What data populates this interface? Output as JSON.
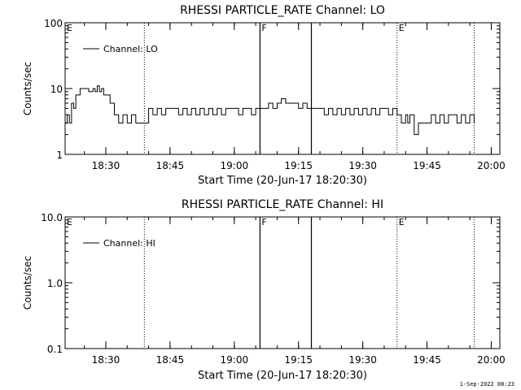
{
  "timestamp": "1-Sep-2022 08:23",
  "x_ticks": [
    "18:30",
    "18:45",
    "19:00",
    "19:15",
    "19:30",
    "19:45",
    "20:00"
  ],
  "markers": {
    "dotted": [
      "18:39",
      "19:38",
      "19:56"
    ],
    "solid": [
      "19:06",
      "19:18"
    ],
    "letters": [
      {
        "text": "E",
        "time": "18:20:30"
      },
      {
        "text": "F",
        "time": "19:06"
      },
      {
        "text": "E",
        "time": "19:38"
      }
    ]
  },
  "chart_data": [
    {
      "type": "line",
      "title": "RHESSI PARTICLE_RATE Channel: LO",
      "xlabel": "Start Time (20-Jun-17 18:20:30)",
      "ylabel": "Counts/sec",
      "yscale": "log",
      "ylim": [
        1,
        100
      ],
      "y_ticks": [
        "1",
        "10",
        "100"
      ],
      "xlim": [
        "18:20:30",
        "20:02"
      ],
      "legend": {
        "position": "top-left",
        "entries": [
          "Channel: LO"
        ]
      },
      "series": [
        {
          "name": "Channel: LO",
          "x": [
            "18:20:30",
            "18:21",
            "18:21:30",
            "18:22",
            "18:22:30",
            "18:23",
            "18:24",
            "18:25",
            "18:26",
            "18:27",
            "18:27:30",
            "18:28",
            "18:28:30",
            "18:29",
            "18:29:30",
            "18:30",
            "18:31",
            "18:32",
            "18:33",
            "18:34",
            "18:35",
            "18:36",
            "18:37",
            "18:38",
            "18:39",
            "18:40",
            "18:41",
            "18:42",
            "18:43",
            "18:44",
            "18:45",
            "18:46",
            "18:47",
            "18:48",
            "18:49",
            "18:50",
            "18:51",
            "18:52",
            "18:53",
            "18:54",
            "18:55",
            "18:56",
            "18:57",
            "18:58",
            "18:59",
            "19:00",
            "19:01",
            "19:02",
            "19:03",
            "19:04",
            "19:05",
            "19:06",
            "19:07",
            "19:08",
            "19:09",
            "19:10",
            "19:11",
            "19:12",
            "19:13",
            "19:14",
            "19:15",
            "19:16",
            "19:17",
            "19:18",
            "19:19",
            "19:20",
            "19:21",
            "19:22",
            "19:23",
            "19:24",
            "19:25",
            "19:26",
            "19:27",
            "19:28",
            "19:29",
            "19:30",
            "19:31",
            "19:32",
            "19:33",
            "19:34",
            "19:35",
            "19:36",
            "19:37",
            "19:38",
            "19:39",
            "19:40",
            "19:40:30",
            "19:41",
            "19:42",
            "19:43",
            "19:44",
            "19:45",
            "19:46",
            "19:47",
            "19:48",
            "19:49",
            "19:50",
            "19:51",
            "19:52",
            "19:53",
            "19:54",
            "19:55",
            "19:56"
          ],
          "y": [
            3,
            4,
            3,
            6,
            5,
            8,
            10,
            10,
            9,
            10,
            9,
            11,
            9,
            10,
            8,
            8,
            6,
            4,
            3,
            4,
            3,
            4,
            3,
            3,
            3,
            5,
            4,
            5,
            4,
            5,
            5,
            5,
            4,
            5,
            4,
            5,
            4,
            5,
            4,
            5,
            4,
            5,
            4,
            5,
            5,
            5,
            4,
            5,
            5,
            4,
            5,
            5,
            5,
            6,
            5,
            6,
            7,
            6,
            6,
            6,
            5,
            6,
            5,
            5,
            5,
            5,
            4,
            5,
            4,
            5,
            4,
            5,
            4,
            5,
            4,
            5,
            4,
            5,
            4,
            5,
            5,
            4,
            5,
            4,
            3,
            4,
            3,
            4,
            2,
            3,
            3,
            3,
            4,
            3,
            4,
            3,
            4,
            4,
            3,
            4,
            3,
            4,
            3
          ]
        }
      ]
    },
    {
      "type": "line",
      "title": "RHESSI PARTICLE_RATE Channel: HI",
      "xlabel": "Start Time (20-Jun-17 18:20:30)",
      "ylabel": "Counts/sec",
      "yscale": "log",
      "ylim": [
        0.1,
        10
      ],
      "y_ticks": [
        "0.1",
        "1.0",
        "10.0"
      ],
      "xlim": [
        "18:20:30",
        "20:02"
      ],
      "legend": {
        "position": "top-left",
        "entries": [
          "Channel: HI"
        ]
      },
      "series": [
        {
          "name": "Channel: HI",
          "x": [],
          "y": []
        }
      ]
    }
  ]
}
